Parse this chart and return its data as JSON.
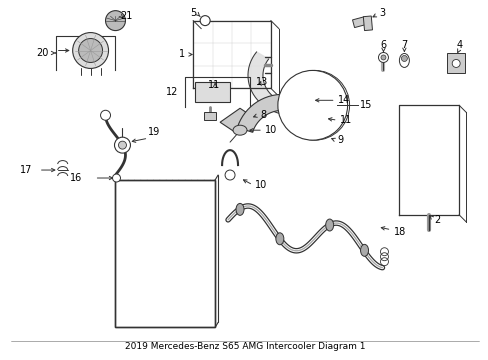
{
  "title": "2019 Mercedes-Benz S65 AMG Intercooler Diagram 1",
  "bg_color": "#ffffff",
  "fig_width": 4.89,
  "fig_height": 3.6,
  "dpi": 100,
  "lc": "#333333",
  "label_fs": 7.0
}
